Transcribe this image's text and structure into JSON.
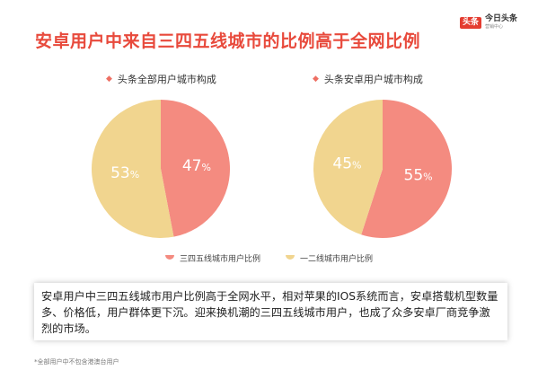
{
  "slide": {
    "title": "安卓用户中来自三四五线城市的比例高于全网比例"
  },
  "logo": {
    "badge": "头条",
    "main": "今日头条",
    "sub": "营销中心"
  },
  "chart_data": [
    {
      "type": "pie",
      "title": "头条全部用户城市构成",
      "slices": [
        {
          "label": "三四五线城市用户比例",
          "value": 47,
          "display": "47%"
        },
        {
          "label": "一二线城市用户比例",
          "value": 53,
          "display": "53%"
        }
      ]
    },
    {
      "type": "pie",
      "title": "头条安卓用户城市构成",
      "slices": [
        {
          "label": "三四五线城市用户比例",
          "value": 55,
          "display": "55%"
        },
        {
          "label": "一二线城市用户比例",
          "value": 45,
          "display": "45%"
        }
      ]
    }
  ],
  "legend": [
    {
      "label": "三四五线城市用户比例",
      "color": "#f48b80"
    },
    {
      "label": "一二线城市用户比例",
      "color": "#f1d58f"
    }
  ],
  "colors": {
    "tier345": "#f48b80",
    "tier12": "#f1d58f",
    "title": "#e84a3c"
  },
  "summary": "安卓用户中三四五线城市用户比例高于全网水平，相对苹果的IOS系统而言，安卓搭载机型数量多、价格低，用户群体更下沉。迎来换机潮的三四五线城市用户，也成了众多安卓厂商竞争激烈的市场。",
  "footnote": "*全部用户中不包含港澳台用户"
}
